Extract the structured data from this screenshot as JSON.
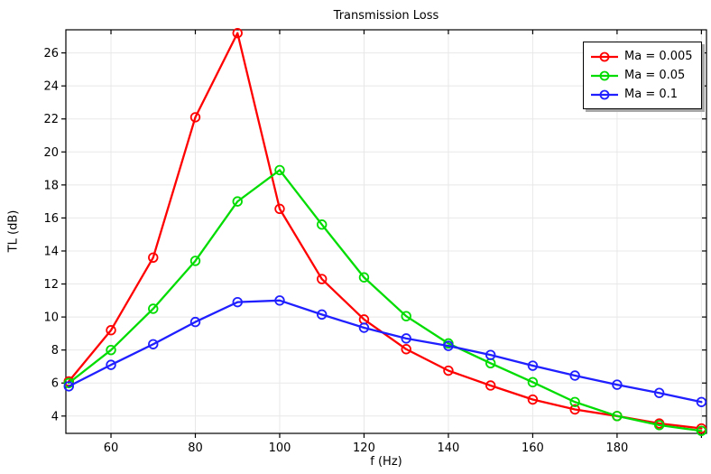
{
  "chart_data": {
    "type": "line",
    "title": "Transmission Loss",
    "xlabel": "f (Hz)",
    "ylabel": "TL (dB)",
    "x": [
      50,
      60,
      70,
      80,
      90,
      100,
      110,
      120,
      130,
      140,
      150,
      160,
      170,
      180,
      190,
      200
    ],
    "series": [
      {
        "name": "Ma = 0.005",
        "color": "#ff0000",
        "marker": "circle",
        "values": [
          6.1,
          9.2,
          13.6,
          22.1,
          27.2,
          16.55,
          12.3,
          9.85,
          8.05,
          6.75,
          5.85,
          5.0,
          4.4,
          4.0,
          3.55,
          3.25
        ]
      },
      {
        "name": "Ma = 0.05",
        "color": "#00dc00",
        "marker": "circle",
        "values": [
          6.0,
          8.0,
          10.5,
          13.4,
          17.0,
          18.9,
          15.6,
          12.4,
          10.05,
          8.4,
          7.2,
          6.05,
          4.85,
          4.0,
          3.45,
          3.1
        ]
      },
      {
        "name": "Ma = 0.1",
        "color": "#1f1fff",
        "marker": "circle",
        "values": [
          5.8,
          7.1,
          8.35,
          9.7,
          10.9,
          11.0,
          10.15,
          9.35,
          8.7,
          8.25,
          7.7,
          7.05,
          6.45,
          5.9,
          5.4,
          4.85
        ]
      }
    ],
    "xlim": [
      49.3,
      201.2
    ],
    "ylim": [
      2.95,
      27.4
    ],
    "x_ticks": [
      60,
      80,
      100,
      120,
      140,
      160,
      180,
      200
    ],
    "x_tick_labels": [
      "60",
      "80",
      "100",
      "120",
      "140",
      "160",
      "180",
      ""
    ],
    "y_ticks": [
      4,
      6,
      8,
      10,
      12,
      14,
      16,
      18,
      20,
      22,
      24,
      26
    ],
    "grid": true,
    "legend_position": "top-right",
    "style": {
      "grid_color": "#e8e8e8",
      "axis_color": "#000000",
      "background": "#ffffff"
    }
  }
}
